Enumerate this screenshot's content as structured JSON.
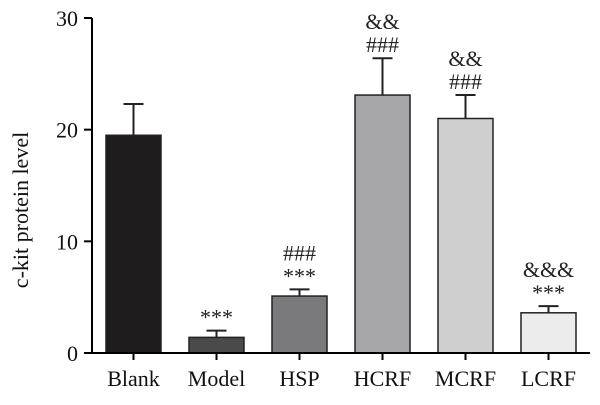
{
  "chart_data": {
    "type": "bar",
    "ylabel": "c-kit protein level",
    "ylim": [
      0,
      30
    ],
    "yticks": [
      0,
      10,
      20,
      30
    ],
    "categories": [
      "Blank",
      "Model",
      "HSP",
      "HCRF",
      "MCRF",
      "LCRF"
    ],
    "values": [
      19.5,
      1.4,
      5.1,
      23.1,
      21.0,
      3.6
    ],
    "errors": [
      2.8,
      0.6,
      0.6,
      3.3,
      2.1,
      0.6
    ],
    "significance": [
      [],
      [
        "***"
      ],
      [
        "###",
        "***"
      ],
      [
        "&&",
        "###"
      ],
      [
        "&&",
        "###"
      ],
      [
        "&&&",
        "***"
      ]
    ],
    "bar_colors": [
      "#1f1c1d",
      "#4a4a4a",
      "#7a7a7c",
      "#a7a7a9",
      "#cfcfd0",
      "#ececec"
    ],
    "grid": false,
    "legend": "none"
  }
}
